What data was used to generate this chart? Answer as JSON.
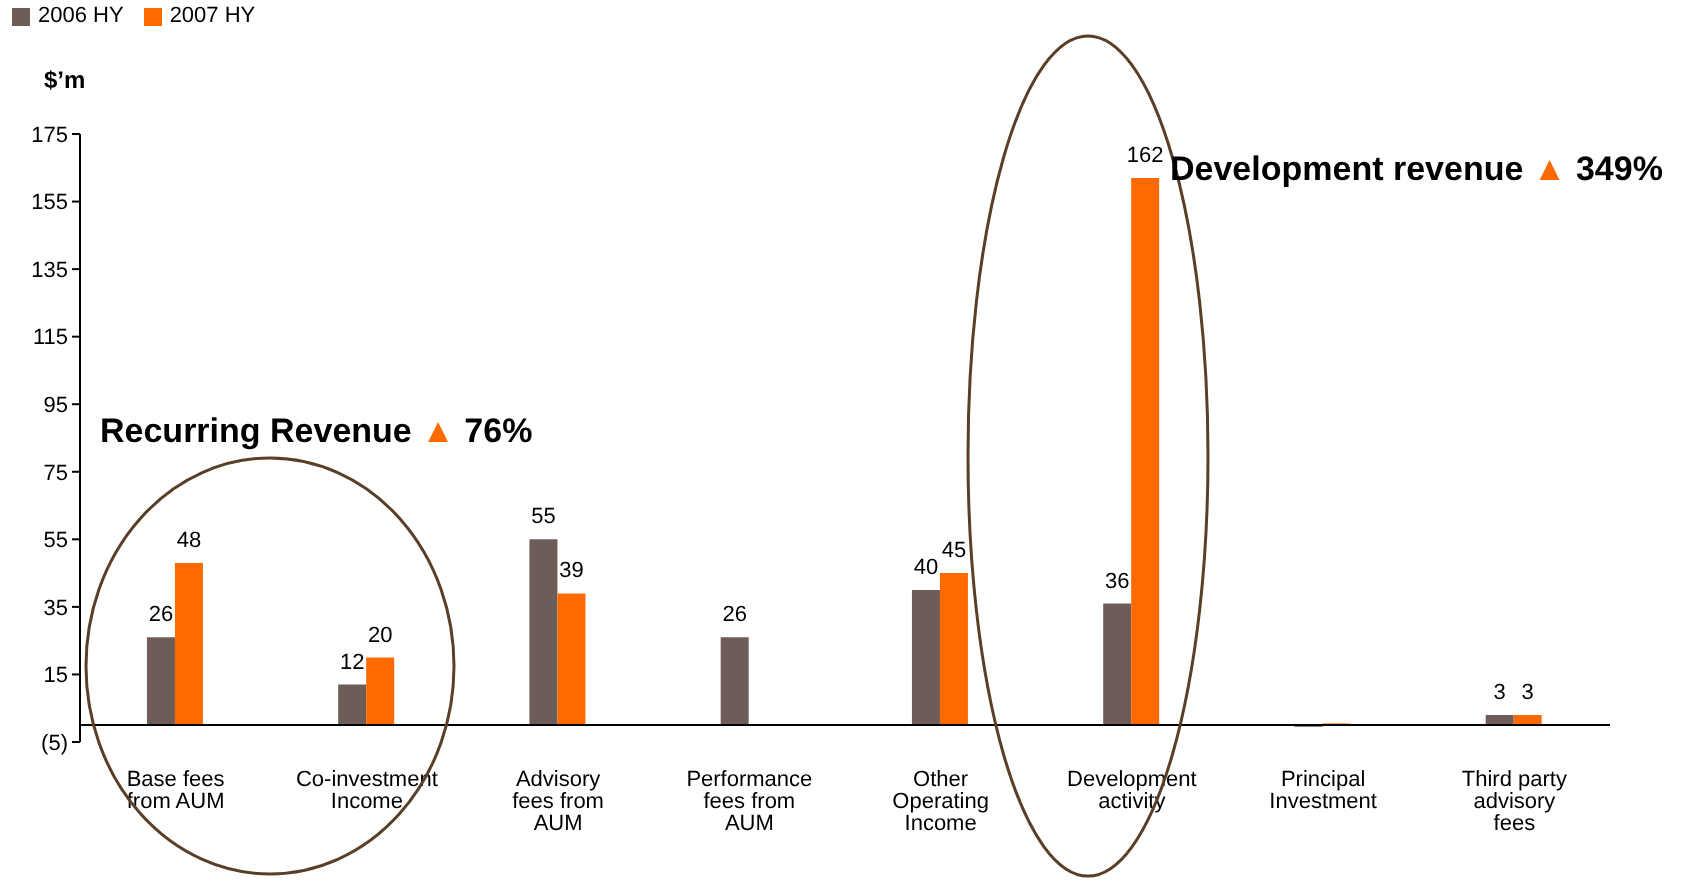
{
  "chart_data": {
    "type": "bar",
    "ylabel": "$’m",
    "categories": [
      "Base fees from AUM",
      "Co-investment Income",
      "Advisory fees from AUM",
      "Performance fees from AUM",
      "Other Operating Income",
      "Development activity",
      "Principal Investment",
      "Third party advisory fees"
    ],
    "series": [
      {
        "name": "2006 HY",
        "color": "#6e5c58",
        "values": [
          26,
          12,
          55,
          26,
          40,
          36,
          -0.5,
          3
        ],
        "value_labels": [
          "26",
          "12",
          "55",
          "26",
          "40",
          "36",
          null,
          "3"
        ]
      },
      {
        "name": "2007 HY",
        "color": "#ff6a00",
        "values": [
          48,
          20,
          39,
          null,
          45,
          162,
          0.5,
          3
        ],
        "value_labels": [
          "48",
          "20",
          "39",
          null,
          "45",
          "162",
          null,
          "3"
        ]
      }
    ],
    "ylim": [
      -5,
      175
    ],
    "yticks": [
      {
        "value": -5,
        "label": "(5)"
      },
      15,
      35,
      55,
      75,
      95,
      115,
      135,
      155,
      175
    ],
    "grid": false,
    "legend": "top left",
    "annotations": [
      "Recurring Revenue ▲ 76%",
      "Development revenue ▲ 349%"
    ]
  }
}
